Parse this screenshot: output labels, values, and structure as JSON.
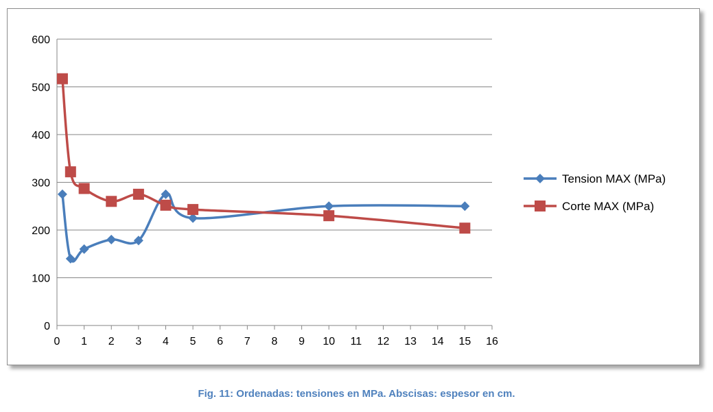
{
  "chart_data": {
    "type": "line",
    "title": "",
    "xlabel": "",
    "ylabel": "",
    "xlim": [
      0,
      16
    ],
    "ylim": [
      0,
      600
    ],
    "x_ticks": [
      0,
      1,
      2,
      3,
      4,
      5,
      6,
      7,
      8,
      9,
      10,
      11,
      12,
      13,
      14,
      15,
      16
    ],
    "y_ticks": [
      0,
      100,
      200,
      300,
      400,
      500,
      600
    ],
    "grid": "horizontal",
    "legend_position": "right",
    "series": [
      {
        "name": "Tension MAX (MPa)",
        "color": "#4a7ebb",
        "marker": "diamond",
        "x": [
          0.2,
          0.5,
          1,
          2,
          3,
          4,
          5,
          10,
          15
        ],
        "values": [
          275,
          140,
          160,
          180,
          178,
          275,
          225,
          250,
          250
        ]
      },
      {
        "name": "Corte MAX (MPa)",
        "color": "#be4b48",
        "marker": "square",
        "x": [
          0.2,
          0.5,
          1,
          2,
          3,
          4,
          5,
          10,
          15
        ],
        "values": [
          517,
          322,
          287,
          260,
          275,
          252,
          243,
          230,
          204
        ]
      }
    ]
  },
  "caption": "Fig. 11: Ordenadas: tensiones en MPa. Abscisas: espesor en cm."
}
